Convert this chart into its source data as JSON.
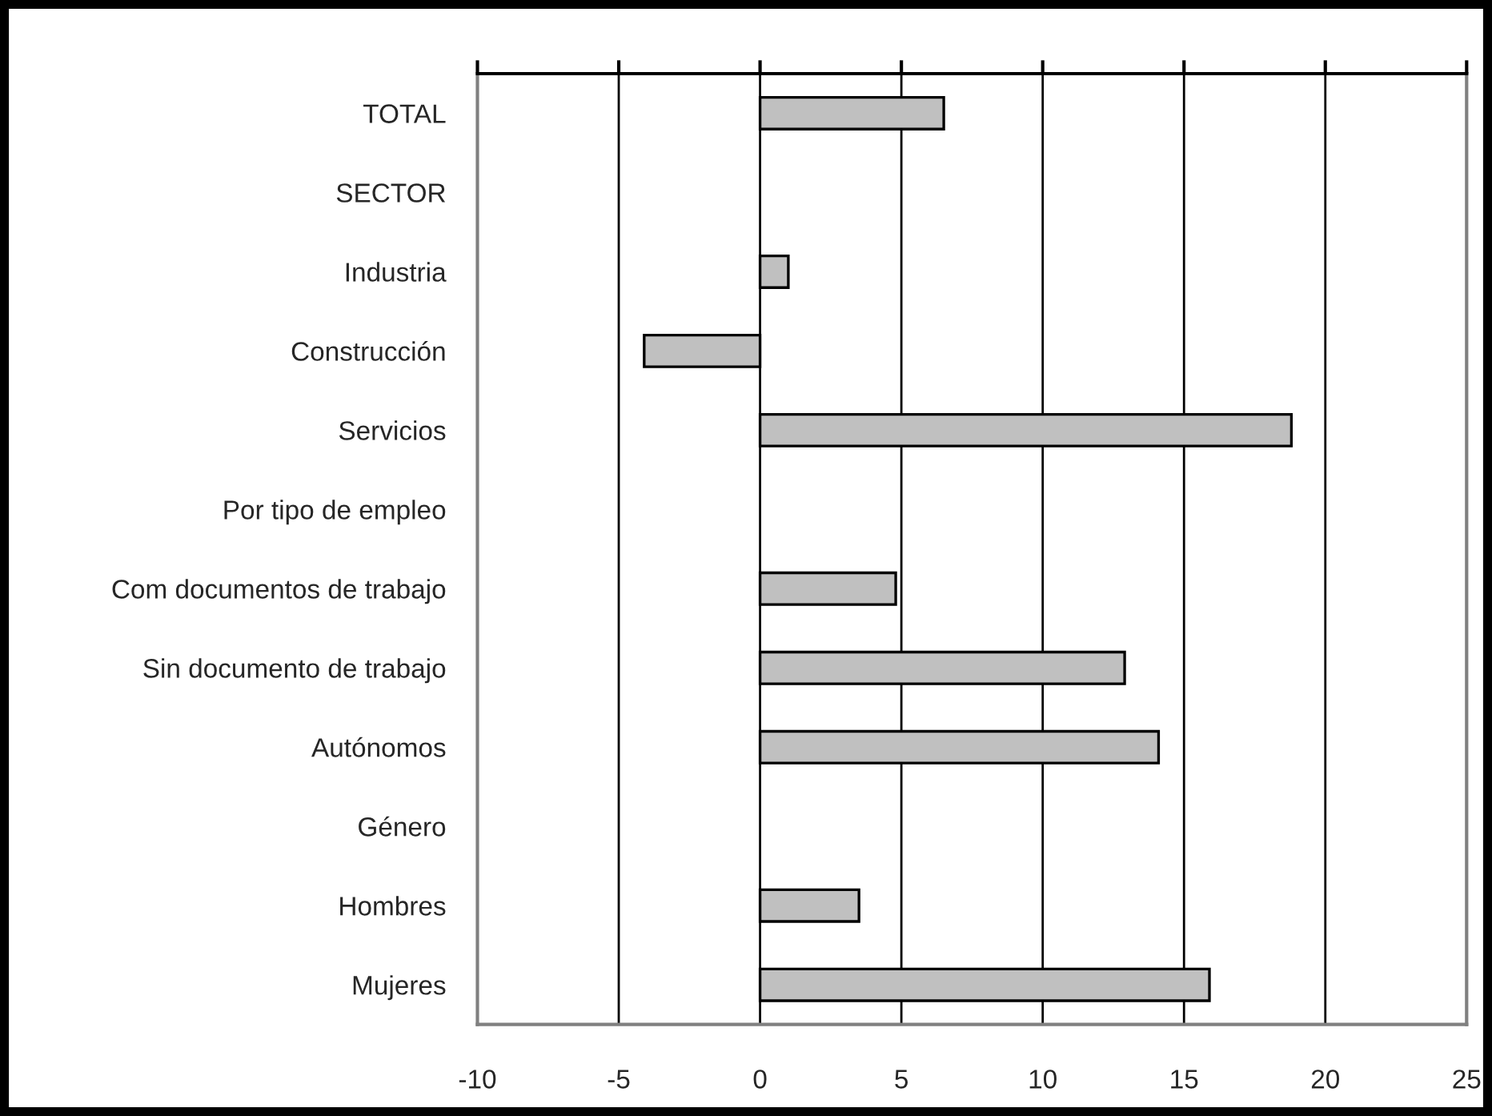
{
  "chart_data": {
    "type": "bar",
    "orientation": "horizontal",
    "categories": [
      "TOTAL",
      "SECTOR",
      "Industria",
      "Construcción",
      "Servicios",
      "Por tipo de empleo",
      "Com documentos de trabajo",
      "Sin documento de trabajo",
      "Autónomos",
      "Género",
      "Hombres",
      "Mujeres"
    ],
    "values": [
      6.5,
      null,
      1.0,
      -4.1,
      18.8,
      null,
      4.8,
      12.9,
      14.1,
      null,
      3.5,
      15.9
    ],
    "color": "#c0c0c0",
    "xlim": [
      -10,
      25
    ],
    "xticks": [
      -10,
      -5,
      0,
      5,
      10,
      15,
      20,
      25
    ],
    "grid": "x",
    "legend": false
  }
}
